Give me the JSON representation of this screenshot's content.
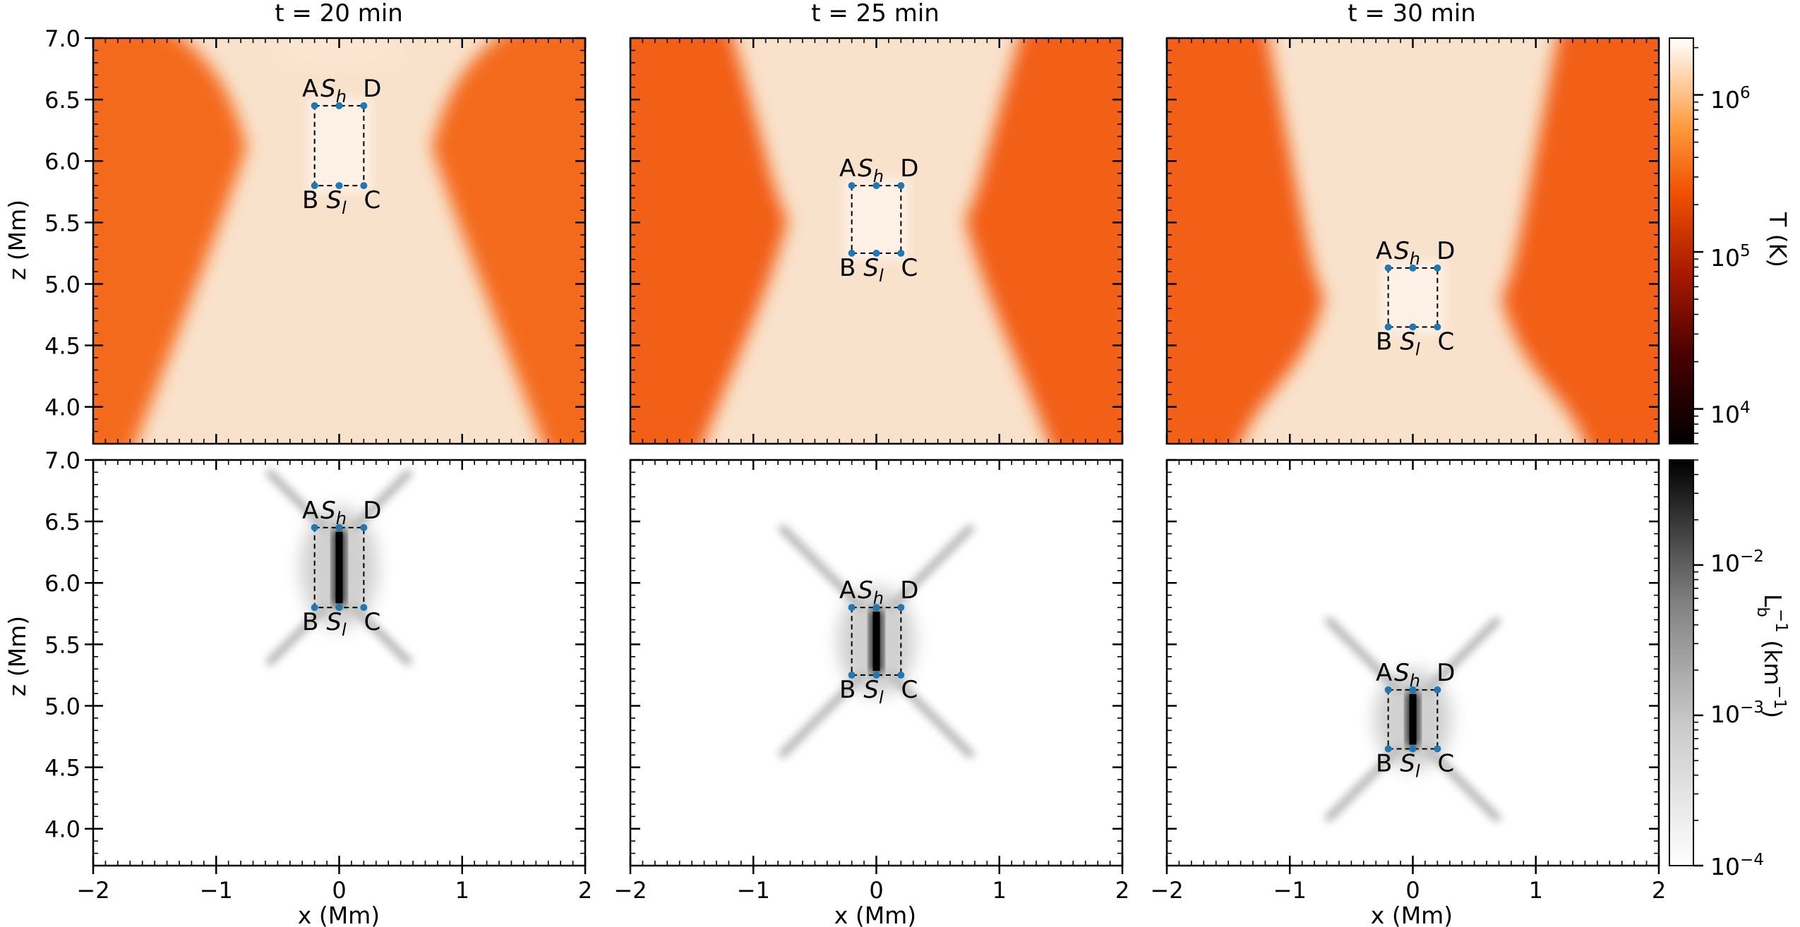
{
  "figure": {
    "columns": [
      {
        "title": "t =  20 min",
        "box": {
          "x_left": -0.2,
          "x_right": 0.2,
          "z_top": 6.45,
          "z_bottom": 5.8
        }
      },
      {
        "title": "t =  25 min",
        "box": {
          "x_left": -0.2,
          "x_right": 0.2,
          "z_top": 5.8,
          "z_bottom": 5.25
        }
      },
      {
        "title": "t =  30 min",
        "box": {
          "x_left": -0.2,
          "x_right": 0.2,
          "z_top": 5.13,
          "z_bottom": 4.65
        }
      }
    ],
    "box_labels": {
      "top_left": "A",
      "top_mid": "S",
      "top_mid_sub": "h",
      "top_right": "D",
      "bottom_left": "B",
      "bottom_mid": "S",
      "bottom_mid_sub": "l",
      "bottom_right": "C"
    },
    "xlabel": "x (Mm)",
    "ylabel": "z (Mm)",
    "x_ticks": [
      "−2",
      "−1",
      "0",
      "1",
      "2"
    ],
    "z_ticks": [
      "7.0",
      "6.5",
      "6.0",
      "5.5",
      "5.0",
      "4.5",
      "4.0"
    ],
    "colorbar_temperature": {
      "label": "T (K)",
      "ticks": [
        "10",
        "10",
        "10"
      ],
      "exponents": [
        "6",
        "5",
        "4"
      ]
    },
    "colorbar_lb": {
      "label_main": "L",
      "label_sub": "b",
      "label_sup": "−1",
      "label_unit": " (km",
      "label_unit_sup": "−1",
      "label_close": ")",
      "ticks": [
        "10",
        "10",
        "10",
        "10"
      ],
      "exponents": [
        "−2",
        "−3",
        "−4",
        ""
      ],
      "last_tick": "10",
      "last_exp": "−4"
    },
    "colors": {
      "box_point": "#1f77b4",
      "cmap_hot_high": "#ffffff",
      "cmap_hot_mid": "#ff6a00",
      "cmap_hot_low": "#000000",
      "gray_high": "#000000",
      "gray_low": "#ffffff"
    }
  },
  "chart_data": [
    {
      "type": "heatmap",
      "title": "t =  20 min",
      "quantity": "T (K)",
      "xlim": [
        -2,
        2
      ],
      "ylim": [
        3.7,
        7.0
      ],
      "xlabel": "",
      "ylabel": "z (Mm)",
      "colorscale": "log",
      "crange": [
        6000,
        2300000
      ],
      "current_sheet_box": {
        "A": [
          -0.2,
          6.45
        ],
        "D": [
          0.2,
          6.45
        ],
        "B": [
          -0.2,
          5.8
        ],
        "C": [
          0.2,
          5.8
        ]
      }
    },
    {
      "type": "heatmap",
      "title": "t =  25 min",
      "quantity": "T (K)",
      "xlim": [
        -2,
        2
      ],
      "ylim": [
        3.7,
        7.0
      ],
      "colorscale": "log",
      "crange": [
        6000,
        2300000
      ],
      "current_sheet_box": {
        "A": [
          -0.2,
          5.8
        ],
        "D": [
          0.2,
          5.8
        ],
        "B": [
          -0.2,
          5.25
        ],
        "C": [
          0.2,
          5.25
        ]
      }
    },
    {
      "type": "heatmap",
      "title": "t =  30 min",
      "quantity": "T (K)",
      "xlim": [
        -2,
        2
      ],
      "ylim": [
        3.7,
        7.0
      ],
      "colorscale": "log",
      "crange": [
        6000,
        2300000
      ],
      "current_sheet_box": {
        "A": [
          -0.2,
          5.13
        ],
        "D": [
          0.2,
          5.13
        ],
        "B": [
          -0.2,
          4.65
        ],
        "C": [
          0.2,
          4.65
        ]
      }
    },
    {
      "type": "heatmap",
      "quantity": "Lb^-1 (km^-1)",
      "xlim": [
        -2,
        2
      ],
      "ylim": [
        3.7,
        7.0
      ],
      "xlabel": "x (Mm)",
      "ylabel": "z (Mm)",
      "colorscale": "log",
      "crange": [
        0.0001,
        0.05
      ],
      "current_sheet_box": {
        "A": [
          -0.2,
          6.45
        ],
        "D": [
          0.2,
          6.45
        ],
        "B": [
          -0.2,
          5.8
        ],
        "C": [
          0.2,
          5.8
        ]
      }
    },
    {
      "type": "heatmap",
      "quantity": "Lb^-1 (km^-1)",
      "xlim": [
        -2,
        2
      ],
      "ylim": [
        3.7,
        7.0
      ],
      "xlabel": "x (Mm)",
      "colorscale": "log",
      "crange": [
        0.0001,
        0.05
      ],
      "current_sheet_box": {
        "A": [
          -0.2,
          5.8
        ],
        "D": [
          0.2,
          5.8
        ],
        "B": [
          -0.2,
          5.25
        ],
        "C": [
          0.2,
          5.25
        ]
      }
    },
    {
      "type": "heatmap",
      "quantity": "Lb^-1 (km^-1)",
      "xlim": [
        -2,
        2
      ],
      "ylim": [
        3.7,
        7.0
      ],
      "xlabel": "x (Mm)",
      "colorscale": "log",
      "crange": [
        0.0001,
        0.05
      ],
      "current_sheet_box": {
        "A": [
          -0.2,
          5.13
        ],
        "D": [
          0.2,
          5.13
        ],
        "B": [
          -0.2,
          4.65
        ],
        "C": [
          0.2,
          4.65
        ]
      }
    }
  ]
}
